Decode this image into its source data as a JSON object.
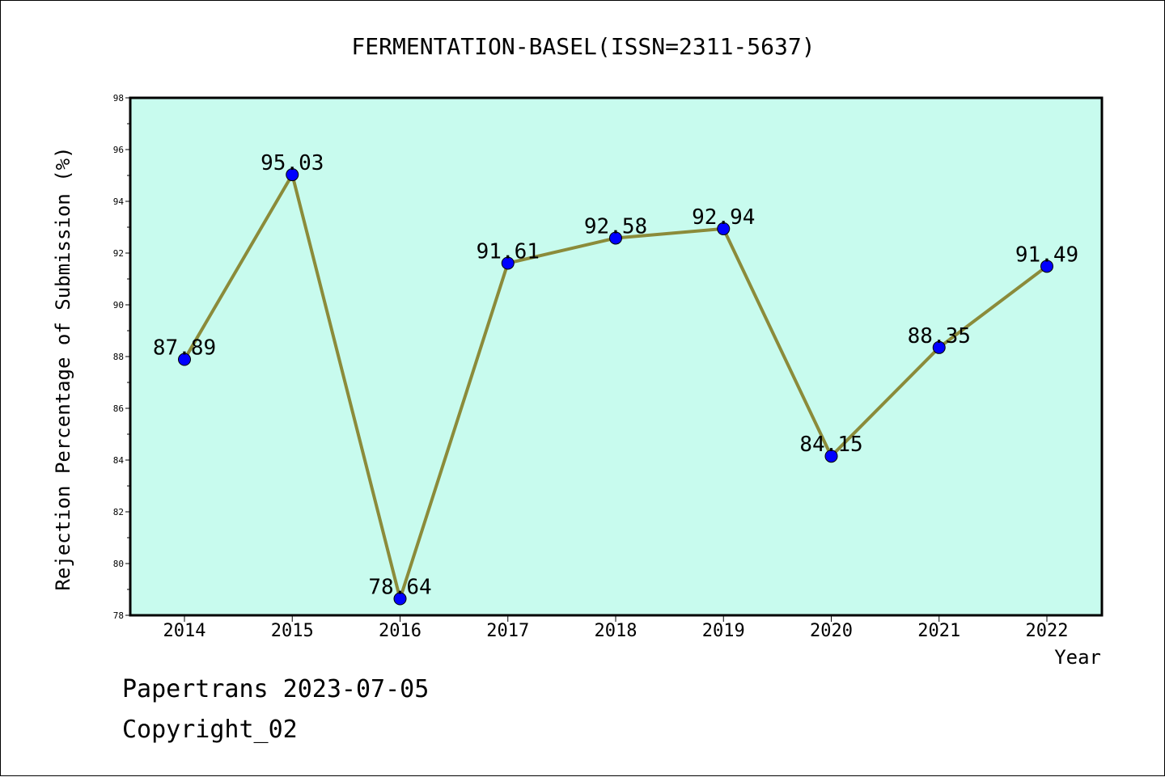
{
  "chart_data": {
    "type": "line",
    "title": "FERMENTATION-BASEL(ISSN=2311-5637)",
    "xlabel": "Year",
    "ylabel": "Rejection Percentage of Submission (%)",
    "ylim": [
      78,
      98
    ],
    "yticks": [
      78,
      80,
      82,
      84,
      86,
      88,
      90,
      92,
      94,
      96,
      98
    ],
    "categories": [
      "2014",
      "2015",
      "2016",
      "2017",
      "2018",
      "2019",
      "2020",
      "2021",
      "2022"
    ],
    "values": [
      87.89,
      95.03,
      78.64,
      91.61,
      92.58,
      92.94,
      84.15,
      88.35,
      91.49
    ],
    "data_labels": [
      "87.89",
      "95.03",
      "78.64",
      "91.61",
      "92.58",
      "92.94",
      "84.15",
      "88.35",
      "91.49"
    ],
    "grid": false,
    "colors": {
      "plot_background": "#c8fbee",
      "line": "#8b8b3a",
      "marker": "#0000ff"
    }
  },
  "footer": {
    "line1": "Papertrans 2023-07-05",
    "line2": "Copyright_02"
  }
}
